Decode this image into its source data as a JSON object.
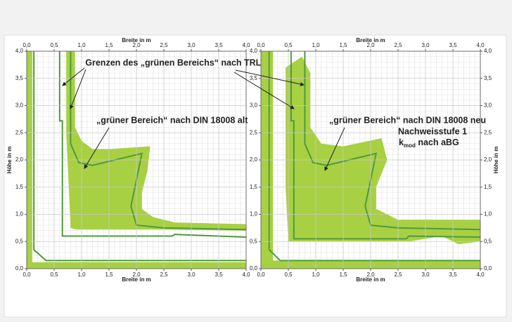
{
  "chart_data": [
    {
      "type": "region",
      "xlabel": "Breite in m",
      "ylabel": "Höhe in m",
      "xlim": [
        0,
        4
      ],
      "ylim": [
        0,
        4
      ],
      "xticks": [
        {
          "value": 0,
          "label": "0,0"
        },
        {
          "value": 0.5,
          "label": "0,5"
        },
        {
          "value": 1,
          "label": "1,0"
        },
        {
          "value": 1.5,
          "label": "1,5"
        },
        {
          "value": 2,
          "label": "2,0"
        },
        {
          "value": 2.5,
          "label": "2,5"
        },
        {
          "value": 3,
          "label": "3,0"
        },
        {
          "value": 3.5,
          "label": "3,5"
        },
        {
          "value": 4,
          "label": "4,0"
        }
      ],
      "yticks": [
        {
          "value": 0,
          "label": "0,0"
        },
        {
          "value": 0.5,
          "label": "0,5"
        },
        {
          "value": 1,
          "label": "1,0"
        },
        {
          "value": 1.5,
          "label": "1,5"
        },
        {
          "value": 2,
          "label": "2,0"
        },
        {
          "value": 2.5,
          "label": "2,5"
        },
        {
          "value": 3,
          "label": "3,0"
        },
        {
          "value": 3.5,
          "label": "3,5"
        },
        {
          "value": 4,
          "label": "4,0"
        }
      ],
      "grid": true,
      "annotations": [
        "Grenzen des „grünen Bereichs“ nach TRLV",
        "„grüner Bereich“ nach DIN 18008 alt"
      ],
      "series": [
        {
          "color": "#a3cd39",
          "fill": true,
          "x": [
            0,
            4,
            4,
            0.1,
            0.1,
            0
          ],
          "values": [
            0,
            0,
            0.12,
            0.12,
            4,
            4
          ]
        },
        {
          "color": "#a3cd39",
          "fill": true,
          "x": [
            0.72,
            0.88,
            0.88,
            1.0,
            1.2,
            1.5,
            2.25,
            2.2,
            2.1,
            2.1,
            2.3,
            2.7,
            4.0,
            4.0,
            2.5,
            0.9,
            0.8,
            0.78,
            0.72
          ],
          "values": [
            4,
            4,
            2.6,
            2.35,
            2.2,
            2.2,
            2.25,
            1.8,
            1.4,
            1.1,
            0.95,
            0.85,
            0.82,
            0.7,
            0.72,
            0.72,
            0.75,
            1.2,
            2.5
          ]
        },
        {
          "color": "#4f9a3c",
          "fill": false,
          "x": [
            0.6,
            0.6,
            0.65,
            0.65,
            2.65,
            2.7,
            4.0
          ],
          "values": [
            4,
            2.72,
            2.72,
            0.6,
            0.6,
            0.63,
            0.58
          ]
        },
        {
          "color": "#4f9a3c",
          "fill": false,
          "x": [
            0.8,
            0.8,
            0.95,
            1.2,
            2.1,
            1.9,
            2.0,
            2.5,
            4.0
          ],
          "values": [
            4,
            2.3,
            1.95,
            1.9,
            2.12,
            1.15,
            0.8,
            0.75,
            0.72
          ]
        },
        {
          "color": "#4f9a3c",
          "fill": false,
          "x": [
            0.13,
            0.13,
            0.35,
            4.0
          ],
          "values": [
            4,
            0.35,
            0.15,
            0.15
          ]
        }
      ]
    },
    {
      "type": "region",
      "xlabel": "Breite in m",
      "ylabel": "Höhe in m",
      "xlim": [
        0,
        4
      ],
      "ylim": [
        0,
        4
      ],
      "xticks": [
        {
          "value": 0,
          "label": "0,0"
        },
        {
          "value": 0.5,
          "label": "0,5"
        },
        {
          "value": 1,
          "label": "1,0"
        },
        {
          "value": 1.5,
          "label": "1,5"
        },
        {
          "value": 2,
          "label": "2,0"
        },
        {
          "value": 2.5,
          "label": "2,5"
        },
        {
          "value": 3,
          "label": "3,0"
        },
        {
          "value": 3.5,
          "label": "3,5"
        },
        {
          "value": 4,
          "label": "4,0"
        }
      ],
      "yticks": [
        {
          "value": 0,
          "label": "0,0"
        },
        {
          "value": 0.5,
          "label": "0,5"
        },
        {
          "value": 1,
          "label": "1,0"
        },
        {
          "value": 1.5,
          "label": "1,5"
        },
        {
          "value": 2,
          "label": "2,0"
        },
        {
          "value": 2.5,
          "label": "2,5"
        },
        {
          "value": 3,
          "label": "3,0"
        },
        {
          "value": 3.5,
          "label": "3,5"
        },
        {
          "value": 4,
          "label": "4,0"
        }
      ],
      "grid": true,
      "annotations": [
        "„grüner Bereich“ nach DIN 18008 neu",
        "Nachweisstufe 1",
        [
          "k",
          "mod",
          " nach aBG"
        ]
      ],
      "series": [
        {
          "color": "#a3cd39",
          "fill": true,
          "x": [
            0,
            4,
            4,
            0.22,
            0.22,
            0
          ],
          "values": [
            0,
            0,
            0.15,
            0.15,
            4,
            4
          ]
        },
        {
          "color": "#a3cd39",
          "fill": true,
          "x": [
            0.45,
            0.75,
            0.9,
            0.9,
            1.1,
            1.5,
            2.2,
            2.3,
            2.1,
            2.1,
            2.5,
            4,
            4,
            3.6,
            3.3,
            2.7,
            0.5,
            0.45
          ],
          "values": [
            3.7,
            3.9,
            3.6,
            2.6,
            2.3,
            2.25,
            2.4,
            2.0,
            1.5,
            1.1,
            0.9,
            0.9,
            0.5,
            0.45,
            0.6,
            0.5,
            0.5,
            1.5
          ]
        },
        {
          "color": "#4f9a3c",
          "fill": false,
          "x": [
            0.55,
            0.55,
            0.6,
            0.6,
            2.65,
            2.7,
            4.0
          ],
          "values": [
            4,
            2.72,
            2.72,
            0.55,
            0.55,
            0.6,
            0.58
          ]
        },
        {
          "color": "#4f9a3c",
          "fill": false,
          "x": [
            0.8,
            0.8,
            0.95,
            1.2,
            2.1,
            1.9,
            2.0,
            2.5,
            4.0
          ],
          "values": [
            4,
            2.3,
            1.95,
            1.9,
            2.12,
            1.15,
            0.8,
            0.75,
            0.72
          ]
        },
        {
          "color": "#4f9a3c",
          "fill": false,
          "x": [
            0.15,
            0.15,
            0.35,
            4.0
          ],
          "values": [
            4,
            0.35,
            0.15,
            0.15
          ]
        }
      ]
    }
  ]
}
